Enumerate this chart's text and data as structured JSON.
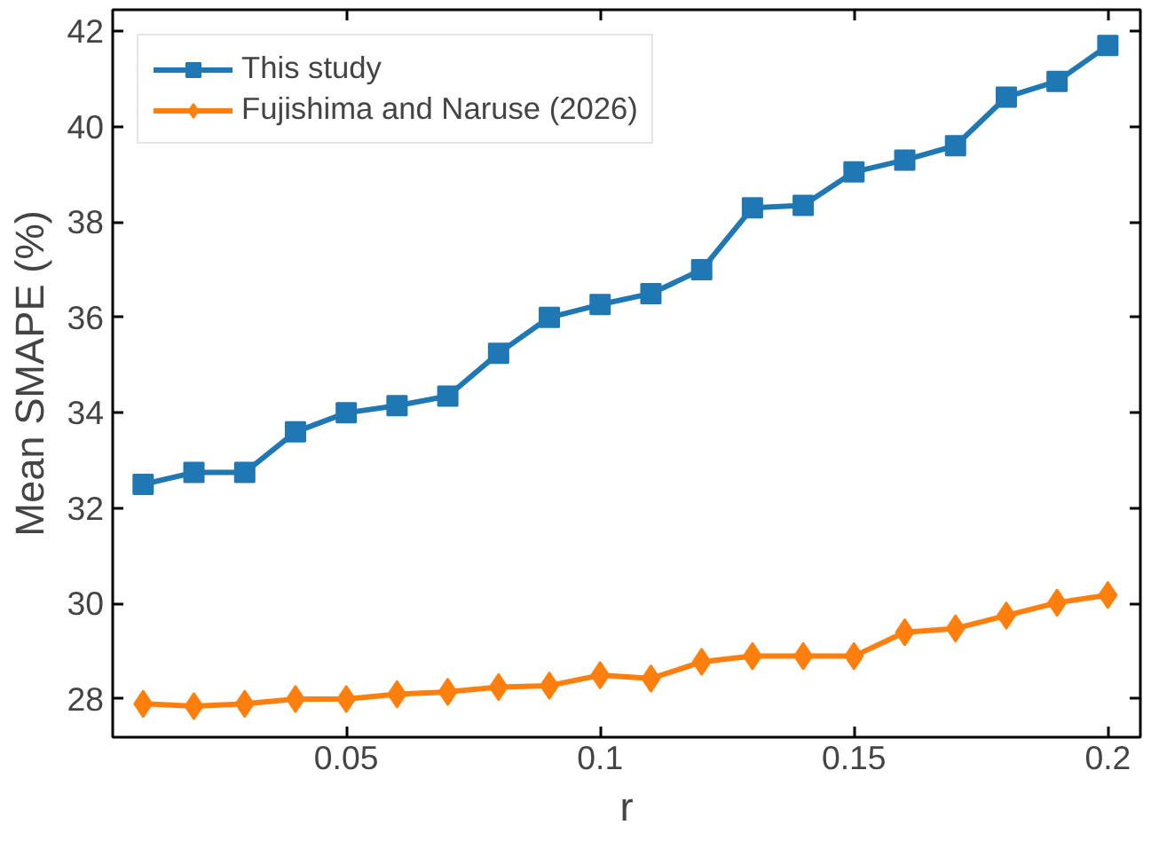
{
  "chart_data": {
    "type": "line",
    "xlabel": "r",
    "ylabel": "Mean SMAPE (%)",
    "x": [
      0.01,
      0.02,
      0.03,
      0.04,
      0.05,
      0.06,
      0.07,
      0.08,
      0.09,
      0.1,
      0.11,
      0.12,
      0.13,
      0.14,
      0.15,
      0.16,
      0.17,
      0.18,
      0.19,
      0.2
    ],
    "series": [
      {
        "name": "This study",
        "color": "#1f77b4",
        "marker": "square",
        "values": [
          32.5,
          32.75,
          32.75,
          33.6,
          34.0,
          34.15,
          34.35,
          35.25,
          36.0,
          36.27,
          36.5,
          37.0,
          38.3,
          38.35,
          39.05,
          39.3,
          39.6,
          40.62,
          40.95,
          41.7
        ]
      },
      {
        "name": "Fujishima and Naruse (2026)",
        "color": "#ff7f0e",
        "marker": "diamond",
        "values": [
          27.9,
          27.85,
          27.9,
          28.0,
          28.0,
          28.1,
          28.15,
          28.25,
          28.28,
          28.5,
          28.43,
          28.78,
          28.9,
          28.9,
          28.9,
          29.4,
          29.48,
          29.75,
          30.02,
          30.18
        ]
      }
    ],
    "xlim": [
      0.004,
      0.2064
    ],
    "ylim": [
      27.2,
      42.45
    ],
    "xticks": [
      0.05,
      0.1,
      0.15,
      0.2
    ],
    "yticks": [
      28,
      30,
      32,
      34,
      36,
      38,
      40,
      42
    ],
    "grid": false,
    "legend": "top left",
    "line_style": "solid"
  }
}
